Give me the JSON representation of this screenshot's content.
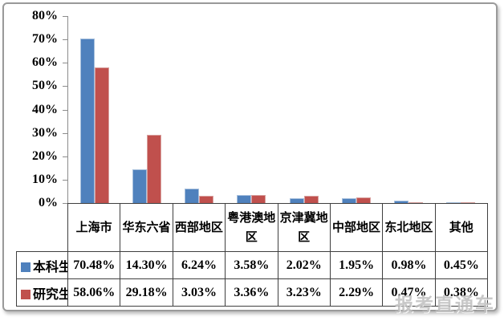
{
  "watermark": "报考直通车",
  "colors": {
    "series_undergrad": "#4f81bd",
    "series_grad": "#c0504d",
    "axis": "#8c8c8c",
    "table_border": "#3f3f3f",
    "frame_border": "#9a9a9a",
    "watermark": "#bfbfbf"
  },
  "chart_data": {
    "type": "bar",
    "title": "",
    "xlabel": "",
    "ylabel": "",
    "categories": [
      "上海市",
      "华东六省",
      "西部地区",
      "粤港澳地区",
      "京津冀地区",
      "中部地区",
      "东北地区",
      "其他"
    ],
    "series": [
      {
        "name": "本科生",
        "color": "#4f81bd",
        "values": [
          70.48,
          14.3,
          6.24,
          3.58,
          2.02,
          1.95,
          0.98,
          0.45
        ],
        "labels": [
          "70.48%",
          "14.30%",
          "6.24%",
          "3.58%",
          "2.02%",
          "1.95%",
          "0.98%",
          "0.45%"
        ]
      },
      {
        "name": "研究生",
        "color": "#c0504d",
        "values": [
          58.06,
          29.18,
          3.03,
          3.36,
          3.23,
          2.29,
          0.47,
          0.38
        ],
        "labels": [
          "58.06%",
          "29.18%",
          "3.03%",
          "3.36%",
          "3.23%",
          "2.29%",
          "0.47%",
          "0.38%"
        ]
      }
    ],
    "ylim": [
      0,
      80
    ],
    "ytick_step": 10,
    "ytick_labels": [
      "0%",
      "10%",
      "20%",
      "30%",
      "40%",
      "50%",
      "60%",
      "70%",
      "80%"
    ],
    "grid": false,
    "legend_position": "table-left-column"
  }
}
